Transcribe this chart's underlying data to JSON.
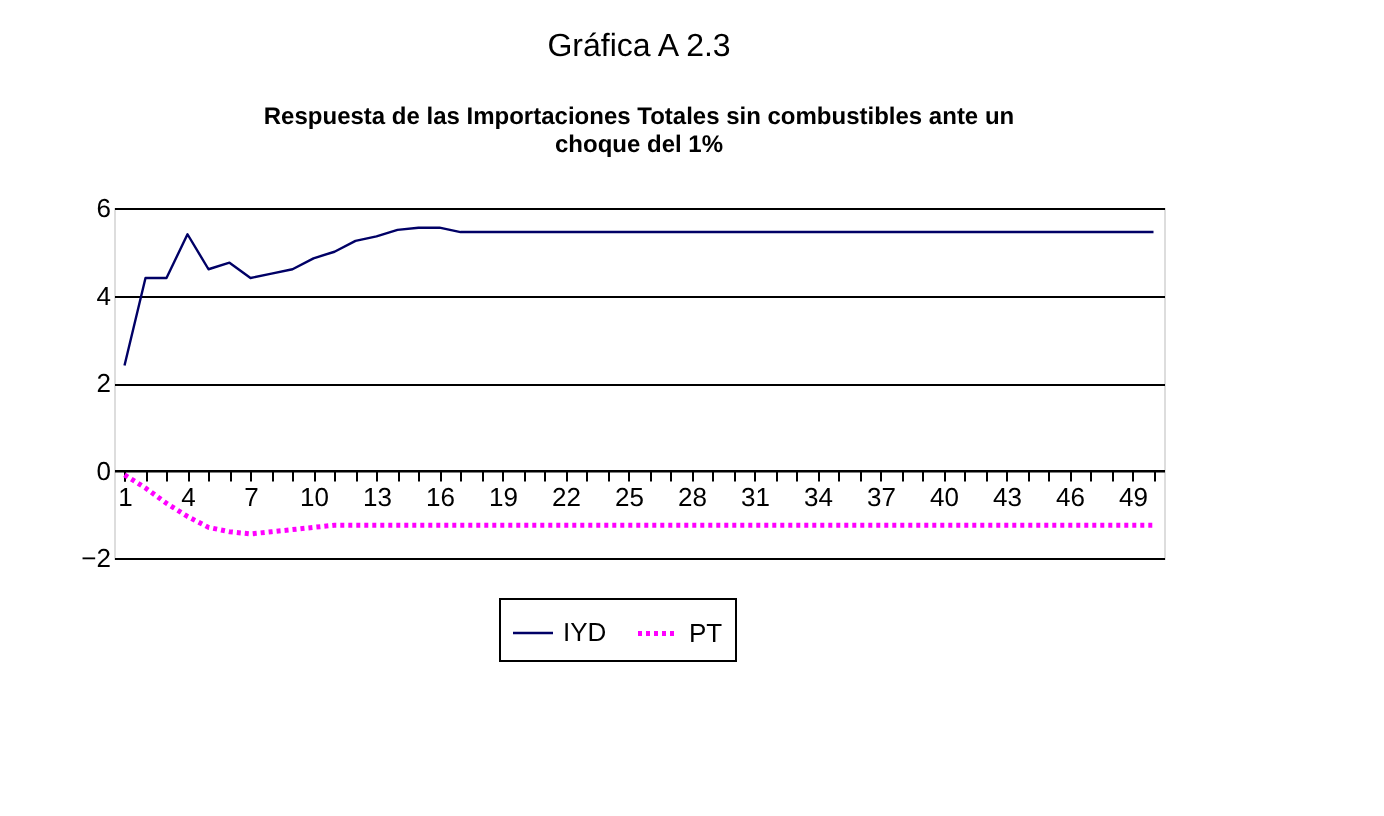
{
  "chart_data": {
    "type": "line",
    "title": "Gráfica A 2.3",
    "subtitle": "Respuesta de las Importaciones Totales sin combustibles ante un choque del 1%",
    "categories": [
      "1",
      null,
      null,
      "4",
      null,
      null,
      "7",
      null,
      null,
      "10",
      null,
      null,
      "13",
      null,
      null,
      "16",
      null,
      null,
      "19",
      null,
      null,
      "22",
      null,
      null,
      "25",
      null,
      null,
      "28",
      null,
      null,
      "31",
      null,
      null,
      "34",
      null,
      null,
      "37",
      null,
      null,
      "40",
      null,
      null,
      "43",
      null,
      null,
      "46",
      null,
      null,
      "49",
      null
    ],
    "series": [
      {
        "name": "IYD",
        "color": "#000066",
        "line_style": "solid",
        "values": [
          2.4,
          4.4,
          4.4,
          5.4,
          4.6,
          4.75,
          4.4,
          4.5,
          4.6,
          4.85,
          5.0,
          5.25,
          5.35,
          5.5,
          5.55,
          5.55,
          5.45,
          5.45,
          5.45,
          5.45,
          5.45,
          5.45,
          5.45,
          5.45,
          5.45,
          5.45,
          5.45,
          5.45,
          5.45,
          5.45,
          5.45,
          5.45,
          5.45,
          5.45,
          5.45,
          5.45,
          5.45,
          5.45,
          5.45,
          5.45,
          5.45,
          5.45,
          5.45,
          5.45,
          5.45,
          5.45,
          5.45,
          5.45,
          5.45,
          5.45
        ]
      },
      {
        "name": "PT",
        "color": "#ff00ff",
        "line_style": "dotted",
        "values": [
          -0.1,
          -0.4,
          -0.75,
          -1.05,
          -1.3,
          -1.4,
          -1.45,
          -1.4,
          -1.35,
          -1.3,
          -1.25,
          -1.25,
          -1.25,
          -1.25,
          -1.25,
          -1.25,
          -1.25,
          -1.25,
          -1.25,
          -1.25,
          -1.25,
          -1.25,
          -1.25,
          -1.25,
          -1.25,
          -1.25,
          -1.25,
          -1.25,
          -1.25,
          -1.25,
          -1.25,
          -1.25,
          -1.25,
          -1.25,
          -1.25,
          -1.25,
          -1.25,
          -1.25,
          -1.25,
          -1.25,
          -1.25,
          -1.25,
          -1.25,
          -1.25,
          -1.25,
          -1.25,
          -1.25,
          -1.25,
          -1.25,
          -1.25
        ]
      }
    ],
    "ylim": [
      -2,
      6
    ],
    "yticks": [
      -2,
      0,
      2,
      4,
      6
    ],
    "grid": "y",
    "legend": "bottom",
    "marker": "none"
  }
}
